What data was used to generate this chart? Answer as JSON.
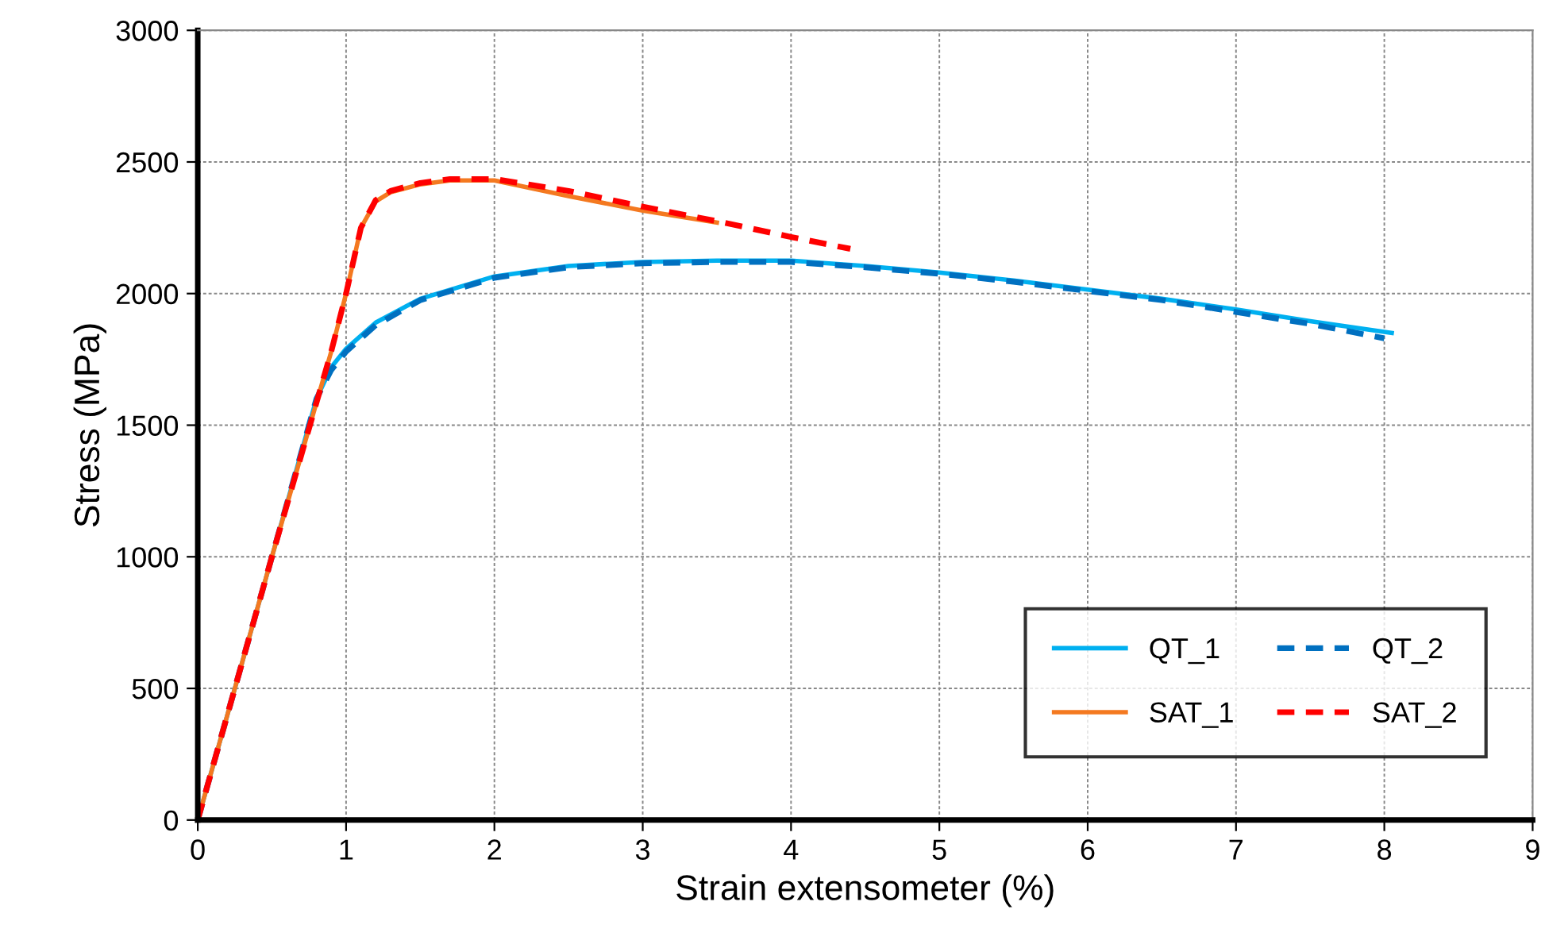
{
  "chart_data": {
    "type": "line",
    "xlabel": "Strain extensometer (%)",
    "ylabel": "Stress (MPa)",
    "xlim": [
      0,
      9
    ],
    "xticks": [
      0,
      1,
      2,
      3,
      4,
      5,
      6,
      7,
      8,
      9
    ],
    "ylim": [
      0,
      3000
    ],
    "yticks": [
      0,
      500,
      1000,
      1500,
      2000,
      2500,
      3000
    ],
    "grid": true,
    "legend": "bottom right",
    "marker": "none",
    "series": [
      {
        "name": "QT_1",
        "color": "#00b0f0",
        "line_style": "solid",
        "x": [
          0,
          0.8,
          0.9,
          1.0,
          1.2,
          1.5,
          2.0,
          2.5,
          3.0,
          3.5,
          4.0,
          4.5,
          5.0,
          5.5,
          6.0,
          6.5,
          7.0,
          7.5,
          8.05
        ],
        "values": [
          0,
          1600,
          1720,
          1790,
          1890,
          1980,
          2065,
          2105,
          2120,
          2125,
          2125,
          2105,
          2080,
          2050,
          2015,
          1980,
          1940,
          1895,
          1850
        ]
      },
      {
        "name": "QT_2",
        "color": "#0070c0",
        "line_style": "dashed",
        "x": [
          0,
          0.8,
          0.9,
          1.0,
          1.2,
          1.5,
          2.0,
          2.5,
          3.0,
          3.5,
          4.0,
          4.5,
          5.0,
          5.5,
          6.0,
          6.5,
          7.0,
          7.5,
          8.0
        ],
        "values": [
          0,
          1600,
          1710,
          1780,
          1880,
          1975,
          2060,
          2100,
          2115,
          2120,
          2120,
          2100,
          2075,
          2045,
          2010,
          1975,
          1930,
          1885,
          1830
        ]
      },
      {
        "name": "SAT_1",
        "color": "#f47920",
        "line_style": "solid",
        "x": [
          0,
          0.5,
          0.9,
          1.0,
          1.1,
          1.2,
          1.3,
          1.5,
          1.7,
          2.0,
          2.5,
          3.0,
          3.5
        ],
        "values": [
          0,
          1000,
          1780,
          2000,
          2250,
          2350,
          2385,
          2415,
          2430,
          2430,
          2370,
          2315,
          2270
        ]
      },
      {
        "name": "SAT_2",
        "color": "#ff0000",
        "line_style": "dashed",
        "x": [
          0,
          0.5,
          0.9,
          1.0,
          1.1,
          1.2,
          1.3,
          1.5,
          1.7,
          2.0,
          2.5,
          3.0,
          3.5,
          4.0,
          4.4
        ],
        "values": [
          0,
          1000,
          1780,
          2000,
          2250,
          2355,
          2390,
          2420,
          2435,
          2435,
          2390,
          2330,
          2275,
          2215,
          2170
        ]
      }
    ]
  }
}
